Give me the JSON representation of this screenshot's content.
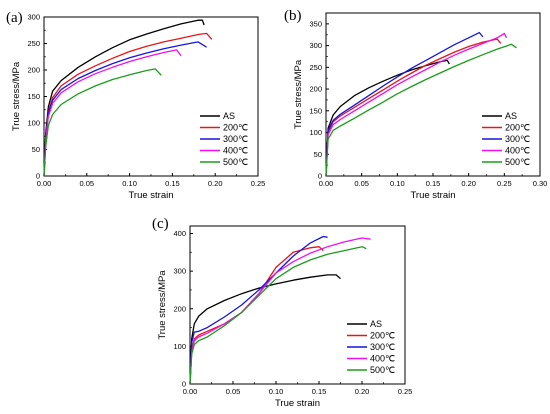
{
  "chart_data": [
    {
      "panel": "(a)",
      "type": "line",
      "title": "",
      "xlabel": "True strain",
      "ylabel": "True stress/MPa",
      "xlim": [
        0,
        0.25
      ],
      "ylim": [
        0,
        300
      ],
      "xticks": [
        "0.00",
        "0.05",
        "0.10",
        "0.15",
        "0.20",
        "0.25"
      ],
      "yticks": [
        "0",
        "50",
        "100",
        "150",
        "200",
        "250",
        "300"
      ],
      "grid": false,
      "legend_position": "bottom-right",
      "series": [
        {
          "name": "AS",
          "color": "#000000",
          "x": [
            0,
            0.002,
            0.005,
            0.01,
            0.02,
            0.04,
            0.06,
            0.08,
            0.1,
            0.12,
            0.14,
            0.16,
            0.18,
            0.185,
            0.187
          ],
          "y": [
            0,
            80,
            130,
            160,
            180,
            205,
            225,
            242,
            257,
            268,
            278,
            287,
            294,
            294,
            285
          ]
        },
        {
          "name": "200℃",
          "color": "#e8151b",
          "x": [
            0,
            0.002,
            0.005,
            0.01,
            0.02,
            0.04,
            0.06,
            0.08,
            0.1,
            0.12,
            0.14,
            0.16,
            0.18,
            0.19,
            0.196
          ],
          "y": [
            0,
            70,
            120,
            148,
            170,
            192,
            208,
            222,
            235,
            245,
            253,
            260,
            267,
            269,
            258
          ]
        },
        {
          "name": "300℃",
          "color": "#1515e0",
          "x": [
            0,
            0.002,
            0.005,
            0.01,
            0.02,
            0.04,
            0.06,
            0.08,
            0.1,
            0.12,
            0.14,
            0.16,
            0.18,
            0.19
          ],
          "y": [
            0,
            68,
            118,
            143,
            163,
            184,
            199,
            212,
            223,
            232,
            240,
            247,
            253,
            243
          ]
        },
        {
          "name": "400℃",
          "color": "#ee10ee",
          "x": [
            0,
            0.002,
            0.005,
            0.01,
            0.02,
            0.04,
            0.06,
            0.08,
            0.1,
            0.12,
            0.14,
            0.155,
            0.16
          ],
          "y": [
            0,
            65,
            112,
            137,
            157,
            178,
            193,
            205,
            216,
            225,
            233,
            238,
            227
          ]
        },
        {
          "name": "500℃",
          "color": "#1a9d1a",
          "x": [
            0,
            0.002,
            0.005,
            0.01,
            0.02,
            0.04,
            0.06,
            0.08,
            0.1,
            0.12,
            0.13,
            0.137
          ],
          "y": [
            0,
            55,
            95,
            116,
            135,
            155,
            170,
            182,
            191,
            199,
            202,
            190
          ]
        }
      ]
    },
    {
      "panel": "(b)",
      "type": "line",
      "title": "",
      "xlabel": "True strain",
      "ylabel": "True stress/MPa",
      "xlim": [
        0,
        0.3
      ],
      "ylim": [
        0,
        375
      ],
      "xticks": [
        "0.00",
        "0.05",
        "0.10",
        "0.15",
        "0.20",
        "0.25",
        "0.30"
      ],
      "yticks": [
        "0",
        "50",
        "100",
        "150",
        "200",
        "250",
        "300",
        "350"
      ],
      "grid": false,
      "legend_position": "bottom-right",
      "series": [
        {
          "name": "AS",
          "color": "#000000",
          "x": [
            0,
            0.003,
            0.01,
            0.02,
            0.04,
            0.06,
            0.08,
            0.1,
            0.12,
            0.14,
            0.16,
            0.17,
            0.173
          ],
          "y": [
            0,
            110,
            140,
            160,
            185,
            203,
            218,
            232,
            244,
            254,
            263,
            266,
            258
          ]
        },
        {
          "name": "200℃",
          "color": "#e8151b",
          "x": [
            0,
            0.003,
            0.01,
            0.02,
            0.04,
            0.06,
            0.08,
            0.1,
            0.12,
            0.14,
            0.16,
            0.18,
            0.2,
            0.22,
            0.24,
            0.245
          ],
          "y": [
            0,
            100,
            125,
            138,
            158,
            178,
            198,
            218,
            237,
            255,
            270,
            285,
            298,
            308,
            315,
            305
          ]
        },
        {
          "name": "300℃",
          "color": "#1515e0",
          "x": [
            0,
            0.003,
            0.01,
            0.02,
            0.04,
            0.06,
            0.08,
            0.1,
            0.12,
            0.14,
            0.16,
            0.18,
            0.2,
            0.215,
            0.22
          ],
          "y": [
            0,
            105,
            128,
            142,
            163,
            185,
            207,
            228,
            248,
            266,
            284,
            302,
            318,
            330,
            320
          ]
        },
        {
          "name": "400℃",
          "color": "#ee10ee",
          "x": [
            0,
            0.003,
            0.01,
            0.02,
            0.04,
            0.06,
            0.08,
            0.1,
            0.12,
            0.14,
            0.16,
            0.18,
            0.2,
            0.22,
            0.24,
            0.25,
            0.253
          ],
          "y": [
            0,
            95,
            118,
            130,
            150,
            170,
            190,
            210,
            228,
            245,
            262,
            278,
            292,
            305,
            318,
            328,
            318
          ]
        },
        {
          "name": "500℃",
          "color": "#1a9d1a",
          "x": [
            0,
            0.003,
            0.01,
            0.02,
            0.04,
            0.06,
            0.08,
            0.1,
            0.12,
            0.14,
            0.16,
            0.18,
            0.2,
            0.22,
            0.24,
            0.26,
            0.267
          ],
          "y": [
            0,
            85,
            105,
            115,
            133,
            152,
            170,
            189,
            206,
            222,
            237,
            252,
            266,
            279,
            292,
            303,
            295
          ]
        }
      ]
    },
    {
      "panel": "(c)",
      "type": "line",
      "title": "",
      "xlabel": "True strain",
      "ylabel": "True stress/MPa",
      "xlim": [
        0,
        0.25
      ],
      "ylim": [
        0,
        420
      ],
      "xticks": [
        "0.00",
        "0.05",
        "0.10",
        "0.15",
        "0.20",
        "0.25"
      ],
      "yticks": [
        "0",
        "100",
        "200",
        "300",
        "400"
      ],
      "grid": false,
      "legend_position": "bottom-right",
      "series": [
        {
          "name": "AS",
          "color": "#000000",
          "x": [
            0,
            0.002,
            0.005,
            0.01,
            0.02,
            0.04,
            0.06,
            0.08,
            0.1,
            0.12,
            0.14,
            0.16,
            0.17,
            0.175
          ],
          "y": [
            0,
            120,
            160,
            180,
            200,
            222,
            240,
            255,
            266,
            276,
            284,
            290,
            290,
            280
          ]
        },
        {
          "name": "200℃",
          "color": "#e8151b",
          "x": [
            0,
            0.002,
            0.005,
            0.01,
            0.02,
            0.04,
            0.06,
            0.08,
            0.1,
            0.12,
            0.14,
            0.15,
            0.155
          ],
          "y": [
            0,
            90,
            120,
            130,
            140,
            160,
            190,
            240,
            310,
            350,
            362,
            365,
            355
          ]
        },
        {
          "name": "300℃",
          "color": "#1515e0",
          "x": [
            0,
            0.002,
            0.005,
            0.01,
            0.02,
            0.04,
            0.06,
            0.08,
            0.1,
            0.12,
            0.14,
            0.155,
            0.16
          ],
          "y": [
            0,
            110,
            138,
            140,
            150,
            178,
            210,
            250,
            295,
            340,
            375,
            392,
            390
          ]
        },
        {
          "name": "400℃",
          "color": "#ee10ee",
          "x": [
            0,
            0.002,
            0.005,
            0.01,
            0.02,
            0.04,
            0.06,
            0.08,
            0.1,
            0.12,
            0.14,
            0.16,
            0.18,
            0.2,
            0.21
          ],
          "y": [
            0,
            85,
            115,
            125,
            135,
            160,
            190,
            240,
            295,
            325,
            348,
            365,
            378,
            388,
            385
          ]
        },
        {
          "name": "500℃",
          "color": "#1a9d1a",
          "x": [
            0,
            0.002,
            0.005,
            0.01,
            0.02,
            0.04,
            0.06,
            0.08,
            0.1,
            0.12,
            0.14,
            0.16,
            0.18,
            0.2,
            0.205
          ],
          "y": [
            0,
            80,
            105,
            115,
            125,
            155,
            190,
            235,
            280,
            310,
            330,
            345,
            355,
            365,
            360
          ]
        }
      ]
    }
  ]
}
